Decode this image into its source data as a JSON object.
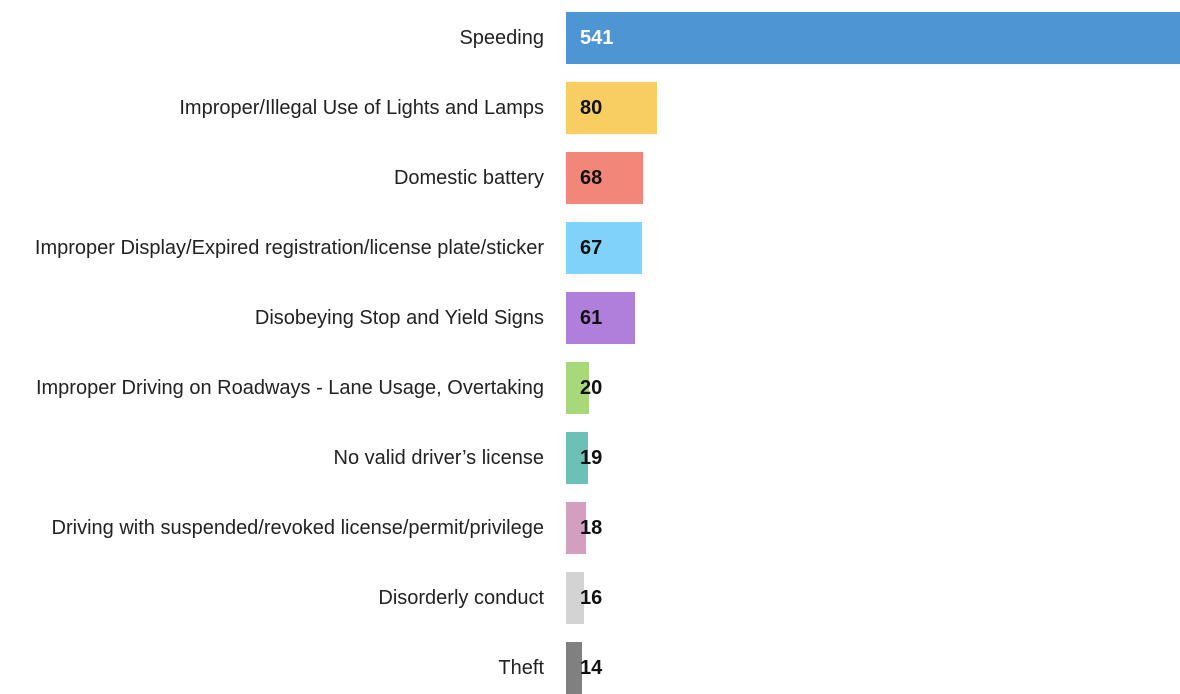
{
  "chart_data": {
    "type": "barh",
    "categories": [
      "Speeding",
      "Improper/Illegal Use of Lights and Lamps",
      "Domestic battery",
      "Improper Display/Expired registration/license plate/sticker",
      "Disobeying Stop and Yield Signs",
      "Improper Driving on Roadways - Lane Usage, Overtaking",
      "No valid driver’s license",
      "Driving with suspended/revoked license/permit/privilege",
      "Disorderly conduct",
      "Theft"
    ],
    "values": [
      541,
      80,
      68,
      67,
      61,
      20,
      19,
      18,
      16,
      14
    ],
    "colors": [
      "#4e95d3",
      "#f8ce63",
      "#f28779",
      "#80d2fb",
      "#b07fdb",
      "#a7d87a",
      "#6cc0b6",
      "#d39ebf",
      "#d3d3d3",
      "#808080"
    ]
  }
}
